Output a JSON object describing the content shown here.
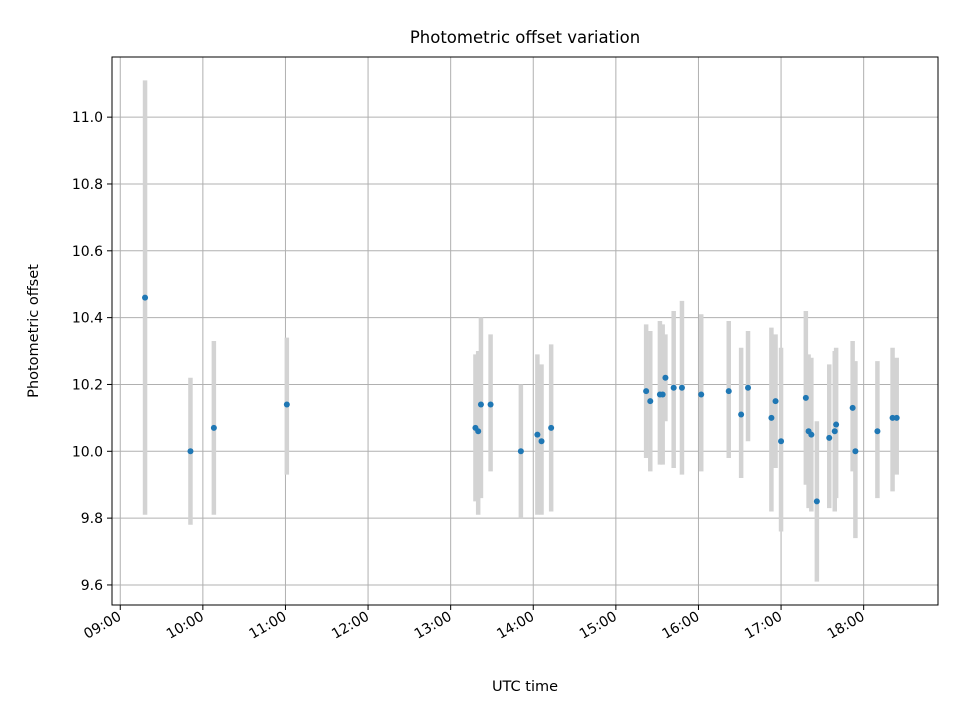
{
  "chart_data": {
    "type": "scatter",
    "title": "Photometric offset variation",
    "xlabel": "UTC time",
    "ylabel": "Photometric offset",
    "x_ticks": [
      "09:00",
      "10:00",
      "11:00",
      "12:00",
      "13:00",
      "14:00",
      "15:00",
      "16:00",
      "17:00",
      "18:00"
    ],
    "y_ticks": [
      "9.6",
      "9.8",
      "10.0",
      "10.2",
      "10.4",
      "10.6",
      "10.8",
      "11.0"
    ],
    "xlim": [
      "08:54",
      "18:54"
    ],
    "ylim": [
      9.54,
      11.18
    ],
    "grid": true,
    "colors": {
      "point": "#1f77b4",
      "errorbar": "#d3d3d3",
      "grid": "#b0b0b0"
    },
    "points": [
      {
        "time": "09:18",
        "y": 10.46,
        "ylow": 9.81,
        "yhigh": 11.11
      },
      {
        "time": "09:51",
        "y": 10.0,
        "ylow": 9.78,
        "yhigh": 10.22
      },
      {
        "time": "10:08",
        "y": 10.07,
        "ylow": 9.81,
        "yhigh": 10.33
      },
      {
        "time": "11:01",
        "y": 10.14,
        "ylow": 9.93,
        "yhigh": 10.34
      },
      {
        "time": "13:18",
        "y": 10.07,
        "ylow": 9.85,
        "yhigh": 10.29
      },
      {
        "time": "13:20",
        "y": 10.06,
        "ylow": 9.81,
        "yhigh": 10.3
      },
      {
        "time": "13:22",
        "y": 10.14,
        "ylow": 9.86,
        "yhigh": 10.4
      },
      {
        "time": "13:29",
        "y": 10.14,
        "ylow": 9.94,
        "yhigh": 10.35
      },
      {
        "time": "13:51",
        "y": 10.0,
        "ylow": 9.8,
        "yhigh": 10.2
      },
      {
        "time": "14:03",
        "y": 10.05,
        "ylow": 9.81,
        "yhigh": 10.29
      },
      {
        "time": "14:06",
        "y": 10.03,
        "ylow": 9.81,
        "yhigh": 10.26
      },
      {
        "time": "14:13",
        "y": 10.07,
        "ylow": 9.82,
        "yhigh": 10.32
      },
      {
        "time": "15:22",
        "y": 10.18,
        "ylow": 9.98,
        "yhigh": 10.38
      },
      {
        "time": "15:25",
        "y": 10.15,
        "ylow": 9.94,
        "yhigh": 10.36
      },
      {
        "time": "15:32",
        "y": 10.17,
        "ylow": 9.96,
        "yhigh": 10.39
      },
      {
        "time": "15:34",
        "y": 10.17,
        "ylow": 9.96,
        "yhigh": 10.38
      },
      {
        "time": "15:36",
        "y": 10.22,
        "ylow": 10.09,
        "yhigh": 10.35
      },
      {
        "time": "15:42",
        "y": 10.19,
        "ylow": 9.95,
        "yhigh": 10.42
      },
      {
        "time": "15:48",
        "y": 10.19,
        "ylow": 9.93,
        "yhigh": 10.45
      },
      {
        "time": "16:02",
        "y": 10.17,
        "ylow": 9.94,
        "yhigh": 10.41
      },
      {
        "time": "16:22",
        "y": 10.18,
        "ylow": 9.98,
        "yhigh": 10.39
      },
      {
        "time": "16:31",
        "y": 10.11,
        "ylow": 9.92,
        "yhigh": 10.31
      },
      {
        "time": "16:36",
        "y": 10.19,
        "ylow": 10.03,
        "yhigh": 10.36
      },
      {
        "time": "16:53",
        "y": 10.1,
        "ylow": 9.82,
        "yhigh": 10.37
      },
      {
        "time": "16:56",
        "y": 10.15,
        "ylow": 9.95,
        "yhigh": 10.35
      },
      {
        "time": "17:00",
        "y": 10.03,
        "ylow": 9.76,
        "yhigh": 10.31
      },
      {
        "time": "17:18",
        "y": 10.16,
        "ylow": 9.9,
        "yhigh": 10.42
      },
      {
        "time": "17:20",
        "y": 10.06,
        "ylow": 9.83,
        "yhigh": 10.29
      },
      {
        "time": "17:22",
        "y": 10.05,
        "ylow": 9.82,
        "yhigh": 10.28
      },
      {
        "time": "17:26",
        "y": 9.85,
        "ylow": 9.61,
        "yhigh": 10.09
      },
      {
        "time": "17:35",
        "y": 10.04,
        "ylow": 9.83,
        "yhigh": 10.26
      },
      {
        "time": "17:39",
        "y": 10.06,
        "ylow": 9.82,
        "yhigh": 10.3
      },
      {
        "time": "17:40",
        "y": 10.08,
        "ylow": 9.86,
        "yhigh": 10.31
      },
      {
        "time": "17:52",
        "y": 10.13,
        "ylow": 9.94,
        "yhigh": 10.33
      },
      {
        "time": "17:54",
        "y": 10.0,
        "ylow": 9.74,
        "yhigh": 10.27
      },
      {
        "time": "18:10",
        "y": 10.06,
        "ylow": 9.86,
        "yhigh": 10.27
      },
      {
        "time": "18:21",
        "y": 10.1,
        "ylow": 9.88,
        "yhigh": 10.31
      },
      {
        "time": "18:24",
        "y": 10.1,
        "ylow": 9.93,
        "yhigh": 10.28
      }
    ]
  }
}
